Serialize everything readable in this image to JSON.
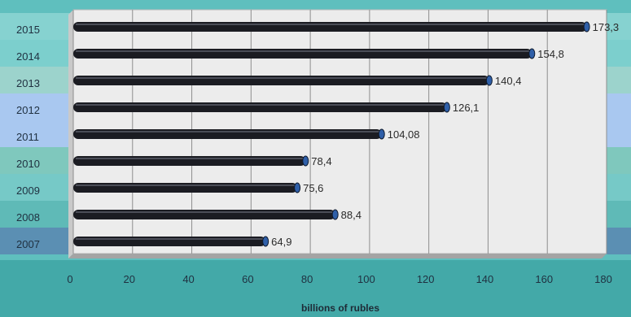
{
  "chart_data": {
    "type": "bar",
    "orientation": "horizontal",
    "categories": [
      "2007",
      "2008",
      "2009",
      "2010",
      "2011",
      "2012",
      "2013",
      "2014",
      "2015"
    ],
    "values": [
      64.9,
      88.4,
      75.6,
      78.4,
      104.08,
      126.1,
      140.4,
      154.8,
      173.3
    ],
    "data_labels": [
      "64,9",
      "88,4",
      "75,6",
      "78,4",
      "104,08",
      "126,1",
      "140,4",
      "154,8",
      "173,3"
    ],
    "xticks": [
      "0",
      "20",
      "40",
      "60",
      "80",
      "100",
      "120",
      "140",
      "160",
      "180"
    ],
    "xlabel": "billions of rubles",
    "xlim": [
      0,
      180
    ],
    "grid": true,
    "bar_color": "#1b1c22",
    "row_band_colors": [
      "#5b8fb3",
      "#5fbab7",
      "#76c9c7",
      "#7fc8bd",
      "#a9c8f0",
      "#a9c8f0",
      "#9cd3cc",
      "#7ccfcd",
      "#86d2d0"
    ],
    "background_color": "#5fbfbe",
    "plot_color": "#ececec"
  }
}
